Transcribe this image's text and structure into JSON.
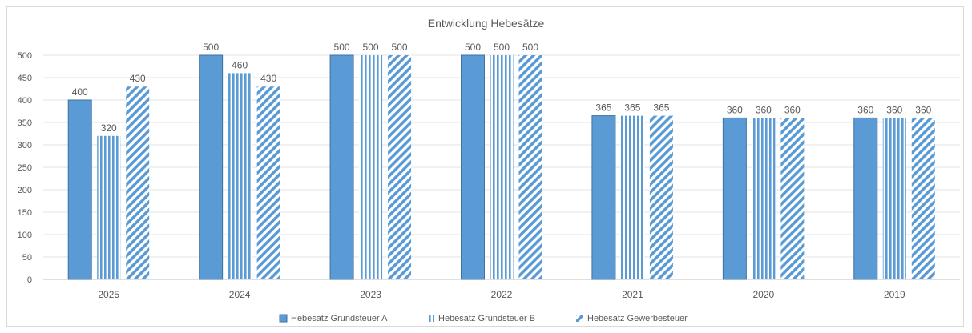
{
  "chart_data": {
    "type": "bar",
    "title": "Entwicklung Hebesätze",
    "xlabel": "",
    "ylabel": "",
    "ylim": [
      0,
      500
    ],
    "yticks": [
      0,
      50,
      100,
      150,
      200,
      250,
      300,
      350,
      400,
      450,
      500
    ],
    "grid": true,
    "legend_position": "bottom",
    "categories": [
      "2025",
      "2024",
      "2023",
      "2022",
      "2021",
      "2020",
      "2019"
    ],
    "series": [
      {
        "name": "Hebesatz Grundsteuer A",
        "values": [
          400,
          500,
          500,
          500,
          365,
          360,
          360
        ],
        "color": "#5b9bd5",
        "pattern": "solid"
      },
      {
        "name": "Hebesatz Grundsteuer B",
        "values": [
          320,
          460,
          500,
          500,
          365,
          360,
          360
        ],
        "color": "#5b9bd5",
        "pattern": "vertical-stripes"
      },
      {
        "name": "Hebesatz Gewerbesteuer",
        "values": [
          430,
          430,
          500,
          500,
          365,
          360,
          360
        ],
        "color": "#5b9bd5",
        "pattern": "diagonal-stripes"
      }
    ]
  }
}
